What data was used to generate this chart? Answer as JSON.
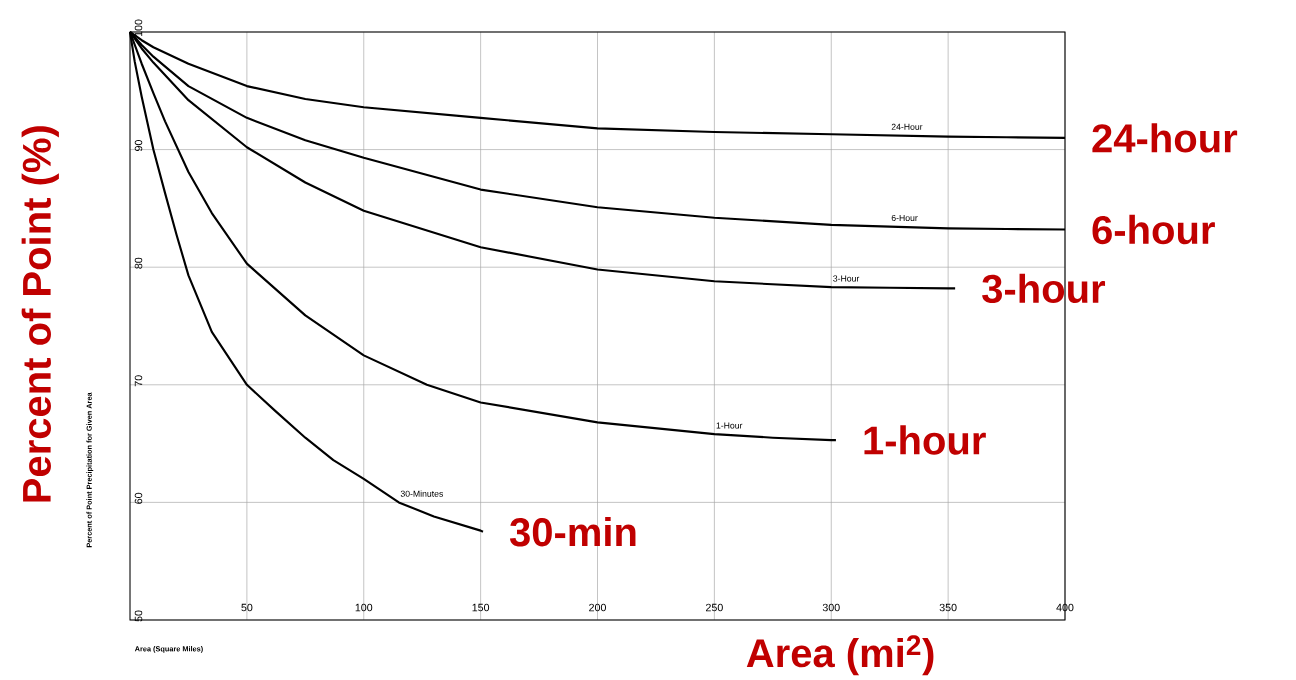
{
  "chart_data": {
    "type": "line",
    "xlabel": "Area (mi$^{2}$)",
    "ylabel": "Percent of Point (%)",
    "xlim": [
      0,
      400
    ],
    "ylim": [
      50,
      100
    ],
    "xticks": [
      50,
      100,
      150,
      200,
      250,
      300,
      350,
      400
    ],
    "yticks": [
      50,
      60,
      70,
      80,
      90,
      100
    ],
    "grid": true,
    "series": [
      {
        "name": "24-Hour",
        "color": "#000000",
        "x": [
          0,
          5,
          10,
          25,
          50,
          75,
          100,
          150,
          200,
          250,
          300,
          325,
          350,
          375,
          400
        ],
        "values": [
          100,
          99.3,
          98.7,
          97.3,
          95.4,
          94.3,
          93.6,
          92.7,
          91.8,
          91.5,
          91.3,
          91.2,
          91.1,
          91.05,
          91.0
        ]
      },
      {
        "name": "6-Hour",
        "color": "#000000",
        "x": [
          0,
          5,
          10,
          25,
          50,
          75,
          100,
          150,
          200,
          250,
          300,
          325,
          350,
          375,
          400
        ],
        "values": [
          100,
          98.9,
          97.9,
          95.4,
          92.7,
          90.8,
          89.3,
          86.6,
          85.1,
          84.2,
          83.6,
          83.45,
          83.3,
          83.25,
          83.2
        ]
      },
      {
        "name": "3-Hour",
        "color": "#000000",
        "x": [
          0,
          5,
          10,
          25,
          50,
          75,
          100,
          150,
          200,
          250,
          300,
          325,
          350,
          353
        ],
        "values": [
          100,
          98.6,
          97.4,
          94.2,
          90.2,
          87.2,
          84.8,
          81.7,
          79.8,
          78.8,
          78.3,
          78.25,
          78.2,
          78.2
        ]
      },
      {
        "name": "1-Hour",
        "color": "#000000",
        "x": [
          0,
          5,
          10,
          15,
          25,
          35,
          50,
          75,
          100,
          127,
          150,
          200,
          250,
          275,
          300,
          302
        ],
        "values": [
          100,
          97.3,
          94.8,
          92.4,
          88.1,
          84.6,
          80.3,
          75.9,
          72.5,
          70,
          68.5,
          66.8,
          65.8,
          65.5,
          65.3,
          65.3
        ]
      },
      {
        "name": "30-Minutes",
        "color": "#000000",
        "x": [
          0,
          2,
          5,
          10,
          15,
          20,
          25,
          35,
          50,
          62,
          75,
          87,
          100,
          115,
          130,
          150,
          151
        ],
        "values": [
          100,
          97.5,
          94.5,
          90,
          86.3,
          82.7,
          79.3,
          74.5,
          70,
          67.8,
          65.5,
          63.6,
          62,
          60,
          58.8,
          57.6,
          57.5
        ]
      }
    ],
    "annotations": [
      "Percent of Point Precipitation for Given Area",
      "Area (Square Miles)",
      {
        "text": "24-hour",
        "x": 400,
        "y": 91.0
      },
      {
        "text": "6-hour",
        "x": 400,
        "y": 83.2
      },
      {
        "text": "3-hour",
        "x": 353,
        "y": 78.2
      },
      {
        "text": "1-hour",
        "x": 302,
        "y": 65.3
      },
      {
        "text": "30-min",
        "x": 151,
        "y": 57.5
      }
    ]
  }
}
